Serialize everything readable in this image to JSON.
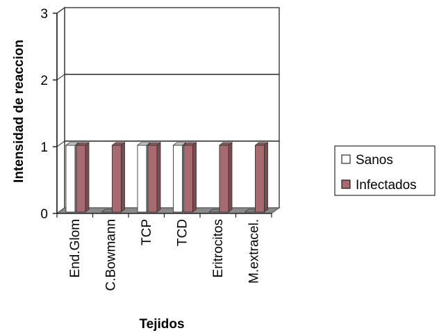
{
  "chart_data": {
    "type": "bar",
    "style": "3d-clustered-column",
    "title": "",
    "xlabel": "Tejidos",
    "ylabel": "Intensidad de reaccion",
    "categories": [
      "End.Glom",
      "C.Bowmann",
      "TCP",
      "TCD",
      "Eritrocitos",
      "M.extracel."
    ],
    "series": [
      {
        "name": "Sanos",
        "values": [
          1,
          0,
          1,
          1,
          0,
          0
        ],
        "color": "#ffffff"
      },
      {
        "name": "Infectados",
        "values": [
          1,
          1,
          1,
          1,
          1,
          1
        ],
        "color": "#a86a6e"
      }
    ],
    "ylim": [
      0,
      3
    ],
    "yticks": [
      0,
      1,
      2,
      3
    ],
    "grid": true,
    "legend_position": "right"
  }
}
